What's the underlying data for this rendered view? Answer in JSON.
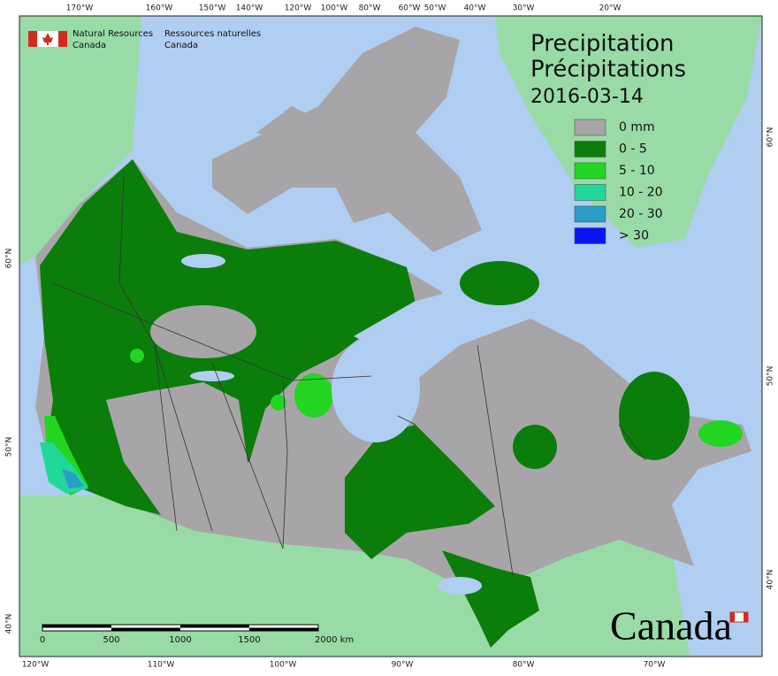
{
  "header": {
    "en_line1": "Natural Resources",
    "en_line2": "Canada",
    "fr_line1": "Ressources naturelles",
    "fr_line2": "Canada"
  },
  "title": {
    "en": "Precipitation",
    "fr": "Précipitations",
    "date": "2016-03-14"
  },
  "legend": [
    {
      "label": "0 mm",
      "color": "#a8a5a8"
    },
    {
      "label": "0 - 5",
      "color": "#0b7d0b"
    },
    {
      "label": "5 - 10",
      "color": "#22d622"
    },
    {
      "label": "10 - 20",
      "color": "#20d89a"
    },
    {
      "label": "20 - 30",
      "color": "#2a9ec6"
    },
    {
      "label": "> 30",
      "color": "#0a14f5"
    }
  ],
  "graticule": {
    "top": [
      "170°W",
      "160°W",
      "150°W",
      "140°W",
      "120°W",
      "100°W",
      "80°W",
      "60°W",
      "50°W",
      "40°W",
      "30°W",
      "20°W"
    ],
    "bottom": [
      "120°W",
      "110°W",
      "100°W",
      "90°W",
      "80°W",
      "70°W"
    ],
    "left": [
      "60°N",
      "50°N",
      "40°N"
    ],
    "right": [
      "60°N",
      "50°N",
      "40°N"
    ]
  },
  "scale_bar": [
    "0",
    "500",
    "1000",
    "1500",
    "2000 km"
  ],
  "wordmark": "Canada"
}
